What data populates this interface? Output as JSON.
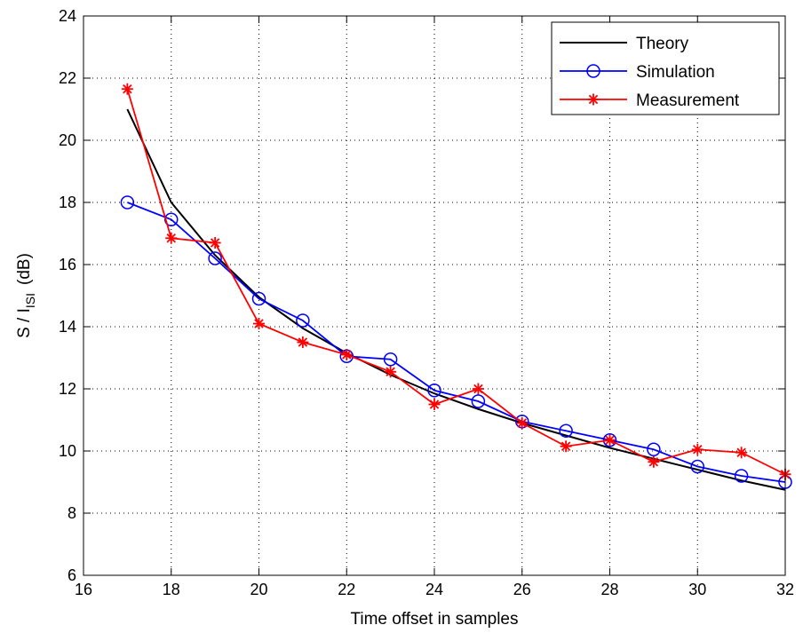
{
  "chart_data": {
    "type": "line",
    "title": "",
    "xlabel": "Time offset in samples",
    "ylabel": {
      "main": "S / I",
      "subscript": "ISI",
      "unit": "(dB)"
    },
    "xlim": [
      16,
      32
    ],
    "ylim": [
      6,
      24
    ],
    "xticks": [
      16,
      18,
      20,
      22,
      24,
      26,
      28,
      30,
      32
    ],
    "yticks": [
      6,
      8,
      10,
      12,
      14,
      16,
      18,
      20,
      22,
      24
    ],
    "grid": true,
    "legend_position": "top-right",
    "series": [
      {
        "name": "Theory",
        "color": "#000000",
        "marker": "none",
        "x": [
          17,
          18,
          19,
          20,
          21,
          22,
          23,
          24,
          25,
          26,
          27,
          28,
          29,
          30,
          31,
          32
        ],
        "y": [
          21.0,
          18.0,
          16.3,
          14.95,
          13.95,
          13.15,
          12.45,
          11.85,
          11.35,
          10.9,
          10.5,
          10.1,
          9.75,
          9.4,
          9.05,
          8.75
        ]
      },
      {
        "name": "Simulation",
        "color": "#0000ff",
        "marker": "circle",
        "x": [
          17,
          18,
          19,
          20,
          21,
          22,
          23,
          24,
          25,
          26,
          27,
          28,
          29,
          30,
          31,
          32
        ],
        "y": [
          18.0,
          17.45,
          16.2,
          14.9,
          14.2,
          13.05,
          12.95,
          11.95,
          11.6,
          10.95,
          10.65,
          10.35,
          10.05,
          9.5,
          9.2,
          9.0
        ]
      },
      {
        "name": "Measurement",
        "color": "#ff0000",
        "marker": "asterisk",
        "x": [
          17,
          18,
          19,
          20,
          21,
          22,
          23,
          24,
          25,
          26,
          27,
          28,
          29,
          30,
          31,
          32
        ],
        "y": [
          21.65,
          16.85,
          16.7,
          14.1,
          13.5,
          13.1,
          12.55,
          11.5,
          12.0,
          10.9,
          10.15,
          10.35,
          9.65,
          10.05,
          9.95,
          9.25
        ]
      }
    ]
  }
}
